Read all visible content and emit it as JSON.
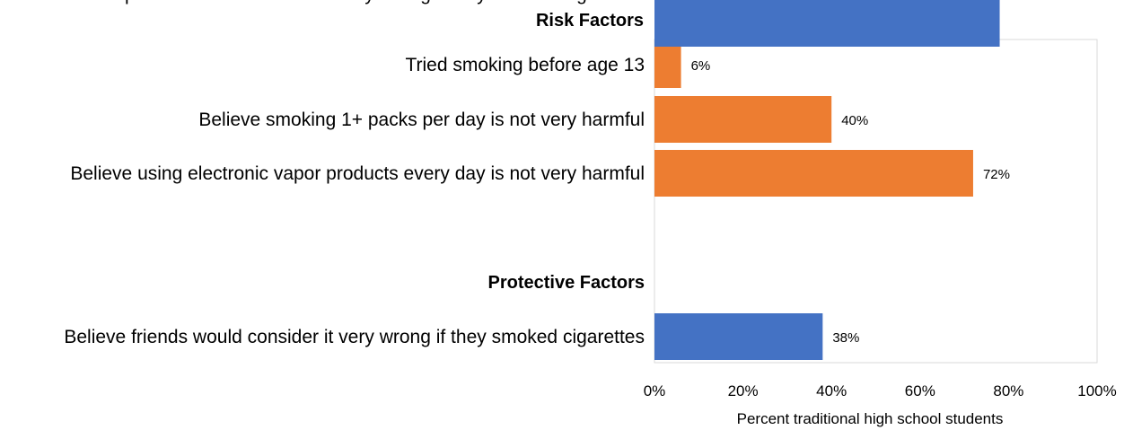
{
  "chart_data": {
    "type": "bar",
    "orientation": "horizontal",
    "sections": [
      {
        "title": "Risk Factors",
        "color": "#ED7D31",
        "items": [
          {
            "label": "Tried smoking before age 13",
            "value": 6,
            "value_label": "6%"
          },
          {
            "label": "Believe smoking 1+ packs per day is not very harmful",
            "value": 40,
            "value_label": "40%"
          },
          {
            "label": "Believe using electronic vapor products every day is not very harmful",
            "value": 72,
            "value_label": "72%"
          }
        ]
      },
      {
        "title": "Protective Factors",
        "color": "#4472C4",
        "items": [
          {
            "label": "Believe friends would consider it very wrong if they smoked cigarettes",
            "value": 38,
            "value_label": "38%"
          },
          {
            "label": "Believe parents would consider it very wrong if they smoked cigarettes",
            "value": 78,
            "value_label": "78%"
          }
        ]
      }
    ],
    "xlabel": "Percent traditional high school students",
    "xlim": [
      0,
      100
    ],
    "x_ticks": [
      {
        "value": 0,
        "label": "0%"
      },
      {
        "value": 20,
        "label": "20%"
      },
      {
        "value": 40,
        "label": "40%"
      },
      {
        "value": 60,
        "label": "60%"
      },
      {
        "value": 80,
        "label": "80%"
      },
      {
        "value": 100,
        "label": "100%"
      }
    ],
    "grid": false,
    "legend": "none",
    "plot_border_color": "#D9D9D9"
  }
}
